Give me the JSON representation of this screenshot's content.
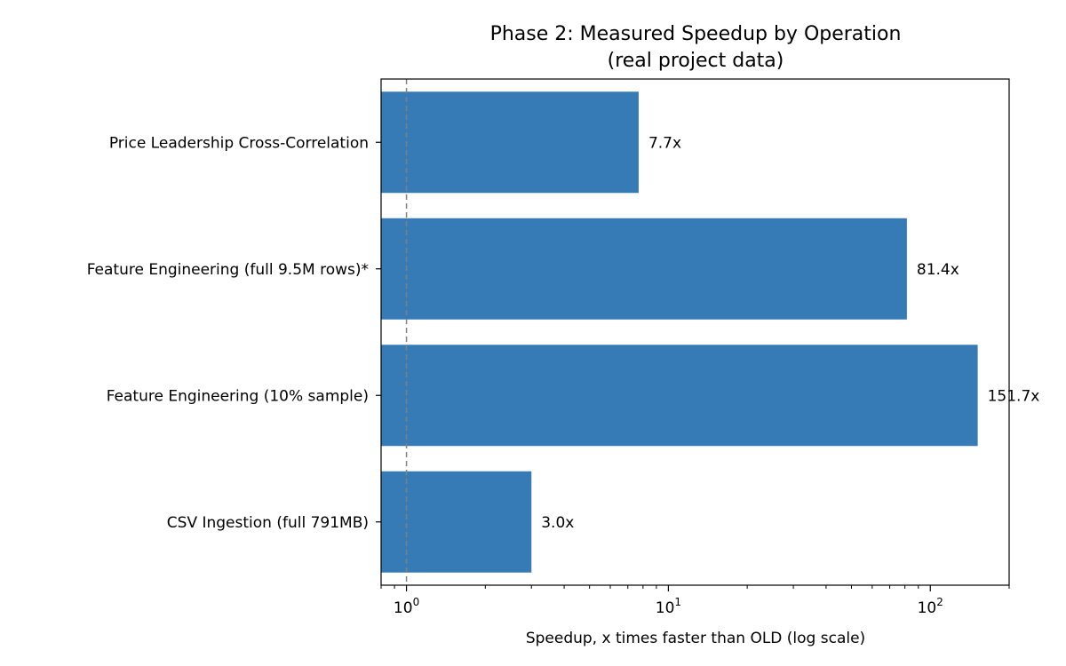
{
  "chart_data": {
    "type": "bar",
    "orientation": "horizontal",
    "title": "Phase 2: Measured Speedup by Operation",
    "subtitle": "(real project data)",
    "xlabel": "Speedup, x times faster than OLD (log scale)",
    "ylabel": "",
    "x_scale": "log",
    "xlim": [
      0.8,
      200
    ],
    "x_tick_labels": [
      {
        "value": 1,
        "base": "10",
        "exp": "0"
      },
      {
        "value": 10,
        "base": "10",
        "exp": "1"
      },
      {
        "value": 100,
        "base": "10",
        "exp": "2"
      }
    ],
    "categories": [
      "Price Leadership Cross-Correlation",
      "Feature Engineering (full 9.5M rows)*",
      "Feature Engineering (10% sample)",
      "CSV Ingestion (full 791MB)"
    ],
    "values": [
      7.7,
      81.4,
      151.7,
      3.0
    ],
    "value_labels": [
      "7.7x",
      "81.4x",
      "151.7x",
      "3.0x"
    ],
    "reference_line": {
      "x": 1,
      "style": "dashed",
      "color": "#808080"
    },
    "bar_color": "#377bb6",
    "grid": false,
    "legend": "none"
  }
}
